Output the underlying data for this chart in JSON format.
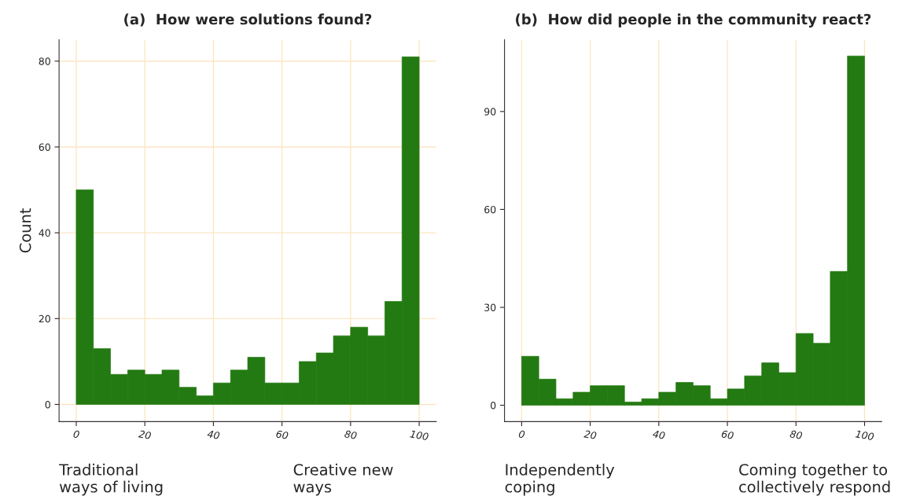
{
  "chart_data": [
    {
      "type": "histogram",
      "title": "(a)  How were solutions found?",
      "ylabel": "Count",
      "color": "#237a12",
      "bins": [
        0,
        5,
        10,
        15,
        20,
        25,
        30,
        35,
        40,
        45,
        50,
        55,
        60,
        65,
        70,
        75,
        80,
        85,
        90,
        95,
        100
      ],
      "values": [
        50,
        13,
        7,
        8,
        7,
        8,
        4,
        2,
        5,
        8,
        11,
        5,
        5,
        10,
        12,
        16,
        18,
        16,
        24,
        81
      ],
      "xlim": [
        -5,
        105
      ],
      "ylim": [
        -4,
        85
      ],
      "xticks": [
        0,
        20,
        40,
        60,
        80,
        100
      ],
      "yticks": [
        0,
        20,
        40,
        60,
        80
      ],
      "grid": true,
      "annotations": [
        "Traditional\nways of living",
        "Creative new\nways"
      ]
    },
    {
      "type": "histogram",
      "title": "(b)  How did people in the community react?",
      "color": "#237a12",
      "bins": [
        0,
        5,
        10,
        15,
        20,
        25,
        30,
        35,
        40,
        45,
        50,
        55,
        60,
        65,
        70,
        75,
        80,
        85,
        90,
        95,
        100
      ],
      "values": [
        15,
        8,
        2,
        4,
        6,
        6,
        1,
        2,
        4,
        7,
        6,
        2,
        5,
        9,
        13,
        10,
        22,
        19,
        41,
        107
      ],
      "xlim": [
        -5,
        105
      ],
      "ylim": [
        -5,
        112
      ],
      "xticks": [
        0,
        20,
        40,
        60,
        80,
        100
      ],
      "yticks": [
        0,
        30,
        60,
        90
      ],
      "grid": "x",
      "annotations": [
        "Independently\ncoping",
        "Coming together to\ncollectively respond"
      ]
    }
  ]
}
